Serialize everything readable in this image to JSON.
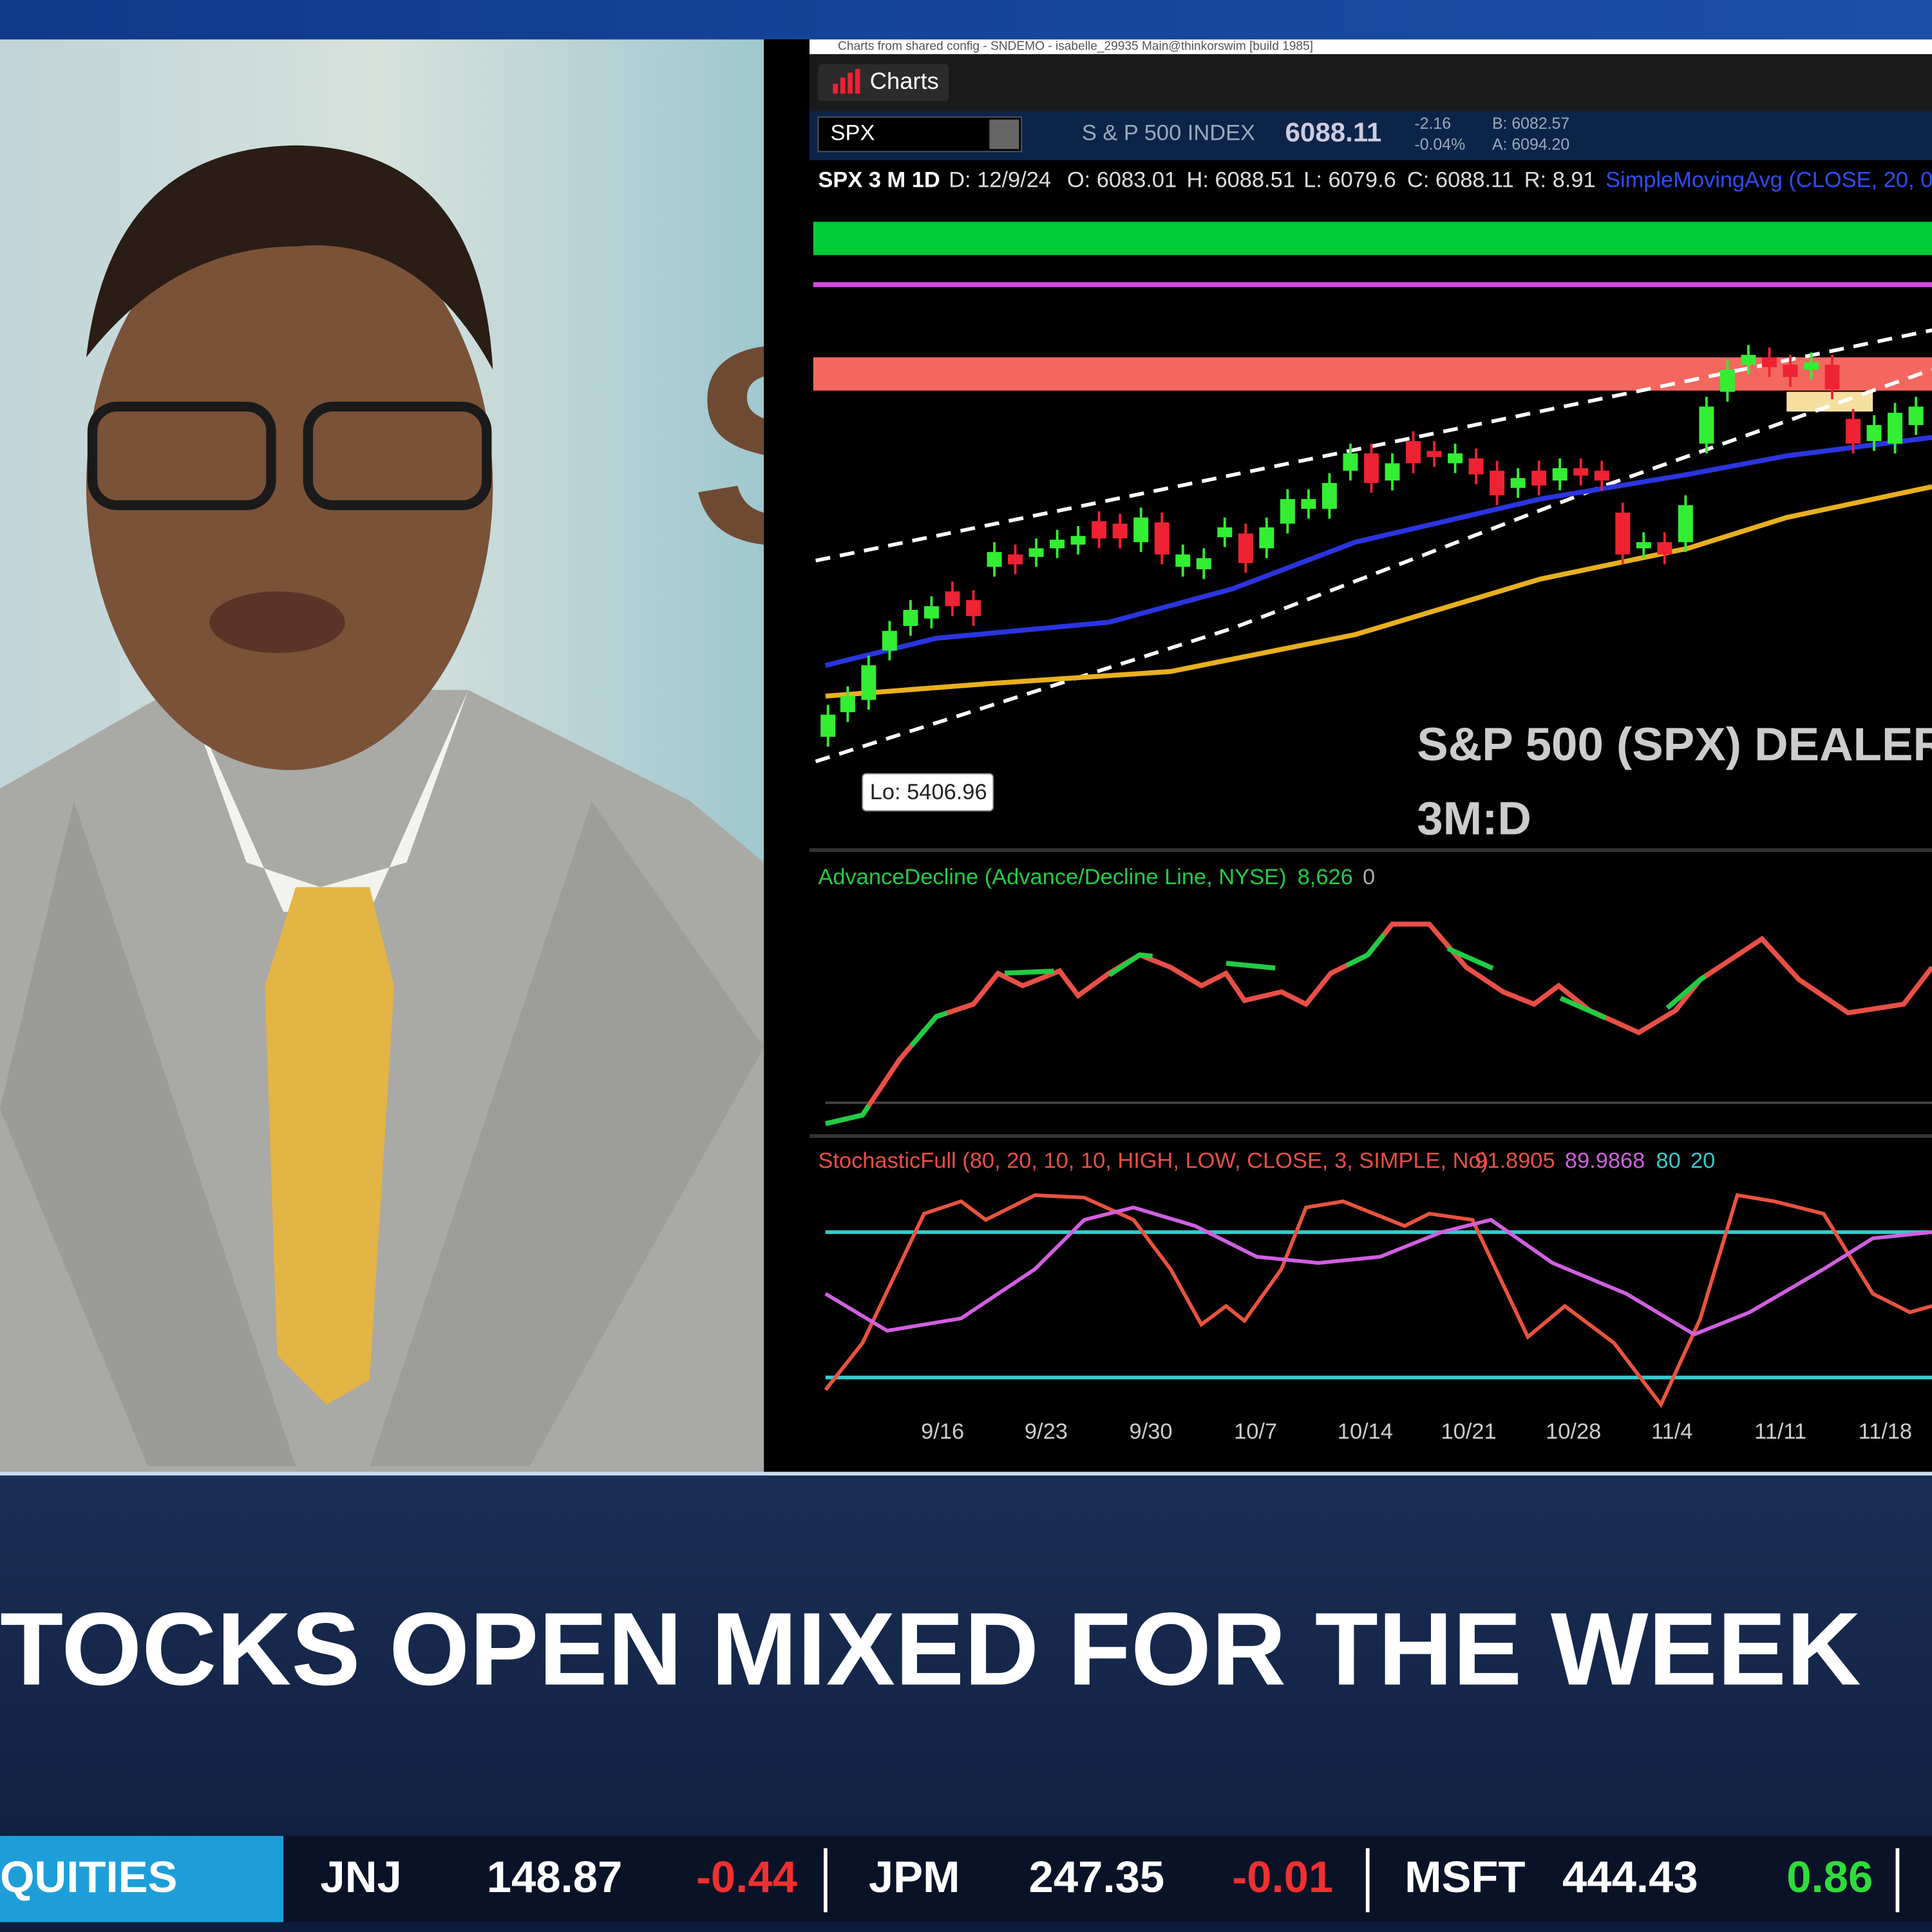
{
  "window": {
    "title": "Charts from shared config - SNDEMO - isabelle_29935 Main@thinkorswim [build 1985]",
    "tab": "Charts"
  },
  "backdrop": {
    "sign": "S"
  },
  "symbol_bar": {
    "symbol": "SPX",
    "name": "S & P 500 INDEX",
    "last": "6088.11",
    "change": "-2.16",
    "change_pct": "-0.04%",
    "bid": "B: 6082.57",
    "ask": "A: 6094.20"
  },
  "info_bar": {
    "study": "SPX 3 M 1D",
    "date": "D: 12/9/24",
    "open": "O: 6083.01",
    "high": "H: 6088.51",
    "low": "L: 6079.6",
    "close": "C: 6088.11",
    "range": "R: 8.91",
    "sma": "SimpleMovingAvg (CLOSE, 20, 0,"
  },
  "price_panel": {
    "low_label": "Lo: 5406.96",
    "caption": [
      "S&P 500 (SPX) DEALER",
      "3M:D"
    ]
  },
  "ad_panel": {
    "label": "AdvanceDecline (Advance/Decline Line, NYSE)",
    "value": "8,626",
    "zero": "0"
  },
  "stoch_panel": {
    "label": "StochasticFull (80, 20, 10, 10, HIGH, LOW, CLOSE, 3, SIMPLE, No)",
    "k": "91.8905",
    "d": "89.9868",
    "over": "80",
    "under": "20"
  },
  "dates": [
    "9/16",
    "9/23",
    "9/30",
    "10/7",
    "10/14",
    "10/21",
    "10/28",
    "11/4",
    "11/11",
    "11/18"
  ],
  "headline": "TOCKS OPEN MIXED FOR THE WEEK",
  "ticker": {
    "section": "QUITIES",
    "items": [
      {
        "symbol": "JNJ",
        "price": "148.87",
        "change": "-0.44"
      },
      {
        "symbol": "JPM",
        "price": "247.35",
        "change": "-0.01"
      },
      {
        "symbol": "MSFT",
        "price": "444.43",
        "change": "0.86"
      }
    ]
  }
}
